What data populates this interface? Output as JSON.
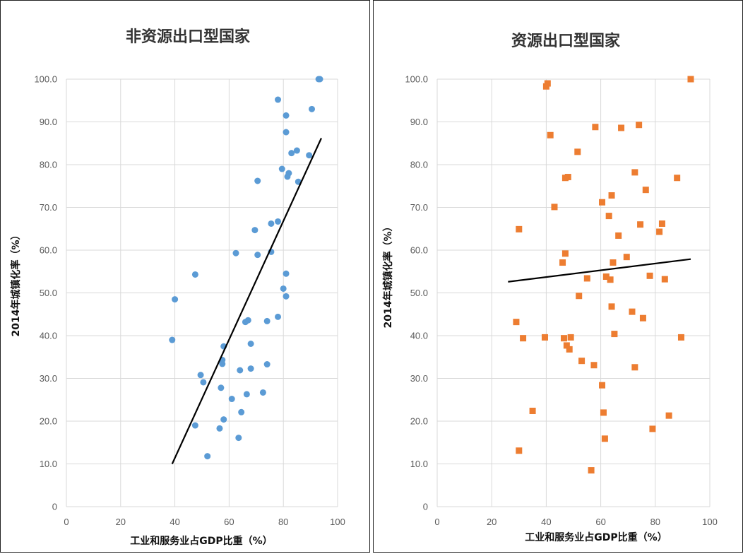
{
  "chart_data": [
    {
      "type": "scatter",
      "title": "非资源出口型国家",
      "xlabel": "工业和服务业占GDP比重（%）",
      "ylabel": "2014年城镇化率（%）",
      "xlim": [
        0,
        100
      ],
      "ylim": [
        0,
        100
      ],
      "x_ticks": [
        "0",
        "20",
        "40",
        "60",
        "80",
        "100"
      ],
      "y_ticks": [
        "0",
        "10.0",
        "20.0",
        "30.0",
        "40.0",
        "50.0",
        "60.0",
        "70.0",
        "80.0",
        "90.0",
        "100.0"
      ],
      "grid": true,
      "marker": "circle",
      "color": "#5B9BD5",
      "series": [
        {
          "x": [
            93,
            93.5,
            78,
            81,
            90.5,
            81,
            89.5,
            85,
            83,
            82,
            81.5,
            79.5,
            70.5,
            85.5,
            78,
            75.5,
            69.5,
            62.5,
            70.5,
            75.5,
            47.5,
            81,
            80,
            81,
            40,
            78,
            67,
            66,
            74,
            39,
            68,
            58,
            57.5,
            57.5,
            74,
            68,
            64,
            49.5,
            50.5,
            57,
            72.5,
            66.5,
            61,
            64.5,
            58,
            47.5,
            56.5,
            63.5,
            52
          ],
          "y": [
            100,
            100,
            95.2,
            91.5,
            93,
            87.6,
            82.2,
            83.3,
            82.7,
            78,
            77.2,
            79,
            76.2,
            76,
            66.7,
            66.2,
            64.7,
            59.3,
            58.9,
            59.6,
            54.3,
            54.5,
            51,
            49.2,
            48.5,
            44.4,
            43.6,
            43.2,
            43.4,
            39,
            38.1,
            37.5,
            34.3,
            33.4,
            33.3,
            32.3,
            31.9,
            30.8,
            29.1,
            27.8,
            26.7,
            26.3,
            25.2,
            22.1,
            20.4,
            19,
            18.3,
            16.1,
            11.8
          ]
        }
      ],
      "trendline": {
        "x": [
          39,
          94
        ],
        "y": [
          10,
          86.2
        ]
      }
    },
    {
      "type": "scatter",
      "title": "资源出口型国家",
      "xlabel": "工业和服务业占GDP比重（%）",
      "ylabel": "2014年城镇化率（%）",
      "xlim": [
        0,
        100
      ],
      "ylim": [
        0,
        100
      ],
      "x_ticks": [
        "0",
        "20",
        "40",
        "60",
        "80",
        "100"
      ],
      "y_ticks": [
        "0",
        "10.0",
        "20.0",
        "30.0",
        "40.0",
        "50.0",
        "60.0",
        "70.0",
        "80.0",
        "90.0",
        "100.0"
      ],
      "grid": true,
      "marker": "square",
      "color": "#ED7D31",
      "series": [
        {
          "x": [
            40.5,
            40,
            93,
            74,
            67.5,
            58,
            41.5,
            51.5,
            72.5,
            88,
            48,
            47,
            64,
            76.5,
            43,
            60.5,
            82.5,
            63,
            74.5,
            81.5,
            30,
            66.5,
            47,
            69.5,
            46,
            64.5,
            78,
            55,
            62,
            63.5,
            83.5,
            52,
            64,
            71.5,
            75.5,
            29,
            65,
            89.5,
            31.5,
            39.5,
            46.5,
            49,
            47.5,
            48.5,
            53,
            57.5,
            72.5,
            60.5,
            61,
            35,
            85,
            79,
            61.5,
            30,
            56.5
          ],
          "y": [
            99,
            98.3,
            100,
            89.3,
            88.6,
            88.8,
            86.9,
            83,
            78.2,
            76.9,
            77.1,
            76.9,
            72.8,
            74.1,
            70.1,
            71.2,
            66.2,
            68,
            66,
            64.3,
            64.9,
            63.4,
            59.2,
            58.4,
            57.1,
            57.1,
            54,
            53.4,
            53.8,
            53.1,
            53.2,
            49.3,
            46.8,
            45.6,
            44.1,
            43.2,
            40.4,
            39.6,
            39.4,
            39.6,
            39.4,
            39.6,
            37.7,
            36.8,
            34.1,
            33.1,
            32.6,
            28.4,
            22,
            22.4,
            21.3,
            18.2,
            15.9,
            13.1,
            8.5
          ]
        }
      ],
      "trendline": {
        "x": [
          26,
          93
        ],
        "y": [
          52.6,
          57.9
        ]
      }
    }
  ]
}
